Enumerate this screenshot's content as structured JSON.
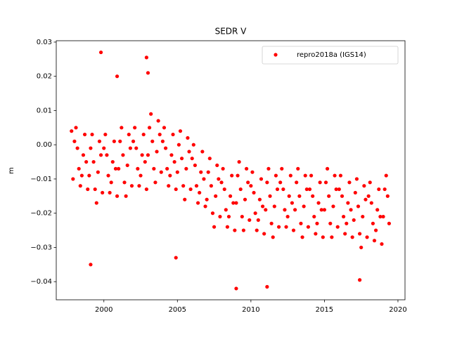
{
  "chart_data": {
    "type": "scatter",
    "title": "SEDR V",
    "ylabel": "m",
    "xlim": [
      1996.76,
      2020.48
    ],
    "ylim": [
      -0.0453,
      0.0304
    ],
    "xticks": [
      2000,
      2005,
      2010,
      2015,
      2020
    ],
    "yticks": [
      {
        "value": 0.03,
        "label": "0.03"
      },
      {
        "value": 0.02,
        "label": "0.02"
      },
      {
        "value": 0.01,
        "label": "0.01"
      },
      {
        "value": 0,
        "label": "0.00"
      },
      {
        "value": -0.01,
        "label": "−0.01"
      },
      {
        "value": -0.02,
        "label": "−0.02"
      },
      {
        "value": -0.03,
        "label": "−0.03"
      },
      {
        "value": -0.04,
        "label": "−0.04"
      }
    ],
    "legend": "upper right",
    "series": [
      {
        "name": "repro2018a (IGS14)",
        "color": "#ff0000",
        "x": [
          1997.8,
          1997.9,
          1998.0,
          1998.1,
          1998.2,
          1998.3,
          1998.4,
          1998.5,
          1998.6,
          1998.7,
          1998.8,
          1998.9,
          1999.0,
          1999.1,
          1999.2,
          1999.3,
          1999.4,
          1999.5,
          1999.6,
          1999.7,
          1999.8,
          1999.9,
          2000.0,
          2000.1,
          2000.2,
          2000.3,
          2000.4,
          2000.5,
          2000.6,
          2000.7,
          2000.8,
          2000.9,
          2001.0,
          2001.1,
          2001.2,
          2001.3,
          2001.4,
          2001.5,
          2001.6,
          2001.7,
          2001.8,
          2001.9,
          2002.0,
          2002.1,
          2002.2,
          2002.3,
          2002.4,
          2002.5,
          2002.6,
          2002.7,
          2002.8,
          2002.9,
          2003.0,
          2003.1,
          2003.2,
          2003.3,
          2003.4,
          2003.5,
          2003.6,
          2003.7,
          2003.8,
          2003.9,
          2004.0,
          2004.1,
          2004.2,
          2004.3,
          2004.4,
          2004.5,
          2004.6,
          2004.7,
          2004.8,
          2004.9,
          2005.0,
          2005.1,
          2005.2,
          2005.3,
          2005.4,
          2005.5,
          2005.6,
          2005.7,
          2005.8,
          2005.9,
          2006.0,
          2006.1,
          2006.2,
          2006.3,
          2006.4,
          2006.5,
          2006.6,
          2006.7,
          2006.8,
          2006.9,
          2007.0,
          2007.1,
          2007.2,
          2007.3,
          2007.4,
          2007.5,
          2007.6,
          2007.7,
          2007.8,
          2007.9,
          2008.0,
          2008.1,
          2008.2,
          2008.3,
          2008.4,
          2008.5,
          2008.6,
          2008.7,
          2008.8,
          2008.9,
          2009.0,
          2009.1,
          2009.2,
          2009.3,
          2009.4,
          2009.5,
          2009.6,
          2009.7,
          2009.8,
          2009.9,
          2010.0,
          2010.1,
          2010.2,
          2010.3,
          2010.4,
          2010.5,
          2010.6,
          2010.7,
          2010.8,
          2010.9,
          2011.0,
          2011.1,
          2011.2,
          2011.3,
          2011.4,
          2011.5,
          2011.6,
          2011.7,
          2011.8,
          2011.9,
          2012.0,
          2012.1,
          2012.2,
          2012.3,
          2012.4,
          2012.5,
          2012.6,
          2012.7,
          2012.8,
          2012.9,
          2013.0,
          2013.1,
          2013.2,
          2013.3,
          2013.4,
          2013.5,
          2013.6,
          2013.7,
          2013.8,
          2013.9,
          2014.0,
          2014.1,
          2014.2,
          2014.3,
          2014.4,
          2014.5,
          2014.6,
          2014.7,
          2014.8,
          2014.9,
          2015.0,
          2015.1,
          2015.2,
          2015.3,
          2015.4,
          2015.5,
          2015.6,
          2015.7,
          2015.8,
          2015.9,
          2016.0,
          2016.1,
          2016.2,
          2016.3,
          2016.4,
          2016.5,
          2016.6,
          2016.7,
          2016.8,
          2016.9,
          2017.0,
          2017.1,
          2017.2,
          2017.3,
          2017.4,
          2017.5,
          2017.6,
          2017.7,
          2017.8,
          2017.9,
          2018.0,
          2018.1,
          2018.2,
          2018.3,
          2018.4,
          2018.5,
          2018.6,
          2018.7,
          2018.8,
          2018.9,
          2019.0,
          2019.1,
          2019.2,
          2019.3,
          2019.4,
          1999.8,
          2002.9,
          1999.1,
          2009.0,
          2011.1,
          2017.4,
          2004.9,
          2000.9,
          2003.0
        ],
        "values": [
          0.004,
          -0.01,
          0.001,
          0.005,
          -0.001,
          -0.007,
          -0.012,
          -0.009,
          -0.003,
          0.003,
          -0.005,
          -0.013,
          -0.009,
          -0.001,
          0.003,
          -0.005,
          -0.013,
          -0.017,
          -0.008,
          0.001,
          -0.003,
          -0.014,
          -0.001,
          0.003,
          -0.003,
          -0.009,
          -0.014,
          -0.011,
          -0.005,
          0.001,
          -0.007,
          -0.015,
          -0.007,
          0.001,
          0.005,
          -0.003,
          -0.011,
          -0.015,
          -0.006,
          0.003,
          -0.001,
          -0.012,
          0.001,
          0.005,
          -0.001,
          -0.007,
          -0.012,
          -0.009,
          -0.003,
          0.003,
          -0.005,
          -0.013,
          -0.003,
          0.005,
          0.009,
          0.001,
          -0.007,
          -0.011,
          -0.002,
          0.007,
          0.003,
          -0.008,
          0.001,
          0.005,
          -0.001,
          -0.007,
          -0.012,
          -0.009,
          -0.003,
          0.003,
          -0.005,
          -0.013,
          -0.008,
          0.0,
          0.004,
          -0.004,
          -0.012,
          -0.016,
          -0.007,
          0.002,
          -0.002,
          -0.013,
          -0.004,
          0.0,
          -0.006,
          -0.012,
          -0.017,
          -0.014,
          -0.008,
          -0.002,
          -0.01,
          -0.018,
          -0.016,
          -0.008,
          -0.004,
          -0.012,
          -0.02,
          -0.024,
          -0.015,
          -0.006,
          -0.01,
          -0.021,
          -0.011,
          -0.007,
          -0.013,
          -0.019,
          -0.024,
          -0.021,
          -0.015,
          -0.009,
          -0.017,
          -0.025,
          -0.017,
          -0.009,
          -0.005,
          -0.013,
          -0.021,
          -0.025,
          -0.016,
          -0.007,
          -0.011,
          -0.022,
          -0.012,
          -0.008,
          -0.014,
          -0.02,
          -0.025,
          -0.022,
          -0.016,
          -0.01,
          -0.018,
          -0.026,
          -0.019,
          -0.011,
          -0.007,
          -0.015,
          -0.023,
          -0.027,
          -0.018,
          -0.009,
          -0.013,
          -0.024,
          -0.011,
          -0.007,
          -0.013,
          -0.019,
          -0.024,
          -0.021,
          -0.015,
          -0.009,
          -0.017,
          -0.025,
          -0.019,
          -0.011,
          -0.007,
          -0.015,
          -0.023,
          -0.027,
          -0.018,
          -0.009,
          -0.013,
          -0.024,
          -0.013,
          -0.009,
          -0.015,
          -0.021,
          -0.026,
          -0.023,
          -0.017,
          -0.011,
          -0.019,
          -0.027,
          -0.019,
          -0.011,
          -0.007,
          -0.015,
          -0.023,
          -0.027,
          -0.018,
          -0.009,
          -0.013,
          -0.024,
          -0.013,
          -0.009,
          -0.015,
          -0.021,
          -0.026,
          -0.023,
          -0.017,
          -0.011,
          -0.019,
          -0.027,
          -0.022,
          -0.014,
          -0.01,
          -0.018,
          -0.026,
          -0.03,
          -0.021,
          -0.012,
          -0.016,
          -0.027,
          -0.015,
          -0.011,
          -0.017,
          -0.023,
          -0.028,
          -0.025,
          -0.019,
          -0.013,
          -0.021,
          -0.029,
          -0.021,
          -0.013,
          -0.009,
          -0.015,
          -0.023,
          0.027,
          0.0255,
          -0.035,
          -0.042,
          -0.0415,
          -0.0395,
          -0.033,
          0.02,
          0.021
        ]
      }
    ]
  }
}
